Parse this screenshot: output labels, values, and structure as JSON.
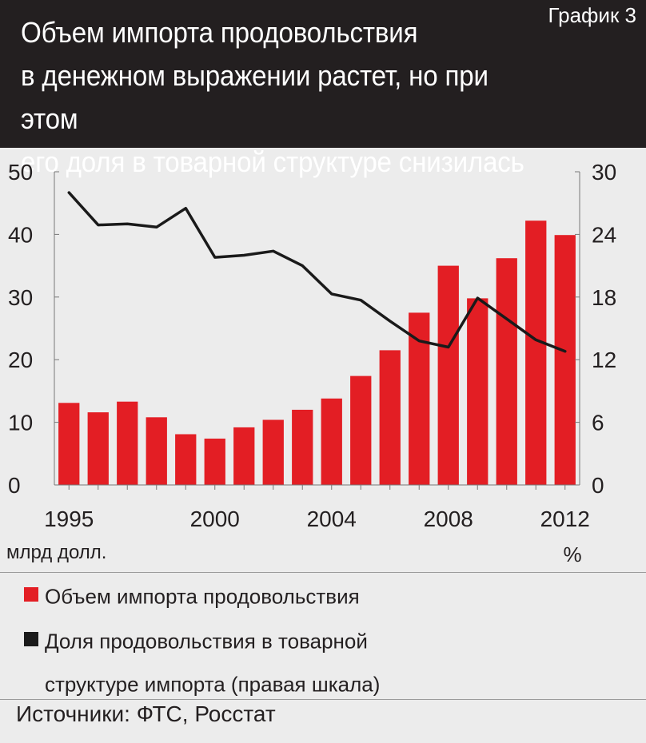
{
  "header": {
    "title_line1": "Объем импорта продовольствия",
    "title_line2": "в денежном выражении растет, но при этом",
    "title_line3": "его доля в товарной структуре снизилась",
    "tag": "График 3"
  },
  "colors": {
    "bar": "#e31e24",
    "line": "#1a1a1a",
    "header_bg": "#231f20",
    "background": "#ececec"
  },
  "chart_data": {
    "type": "bar",
    "years": [
      1995,
      1996,
      1997,
      1998,
      1999,
      2000,
      2001,
      2002,
      2003,
      2004,
      2005,
      2006,
      2007,
      2008,
      2009,
      2010,
      2011,
      2012
    ],
    "x_tick_labels": [
      "1995",
      "2000",
      "2004",
      "2008",
      "2012"
    ],
    "left_axis": {
      "ylim": [
        0,
        50
      ],
      "ticks": [
        "0",
        "10",
        "20",
        "30",
        "40",
        "50"
      ],
      "unit_label": "млрд долл."
    },
    "right_axis": {
      "ylim": [
        0,
        30
      ],
      "ticks": [
        "0",
        "6",
        "12",
        "18",
        "24",
        "30"
      ],
      "unit_label": "%"
    },
    "grid": false,
    "series": [
      {
        "name": "Объем импорта продовольствия",
        "type": "bar",
        "axis": "left",
        "values": [
          13.1,
          11.6,
          13.3,
          10.8,
          8.1,
          7.4,
          9.2,
          10.4,
          12.0,
          13.8,
          17.4,
          21.5,
          27.5,
          35.0,
          29.8,
          36.2,
          42.2,
          39.9
        ]
      },
      {
        "name": "Доля продовольствия в товарной структуре импорта (правая шкала)",
        "type": "line",
        "axis": "right",
        "values": [
          28.0,
          24.9,
          25.0,
          24.7,
          26.5,
          21.8,
          22.0,
          22.4,
          21.0,
          18.3,
          17.7,
          15.7,
          13.8,
          13.2,
          17.9,
          15.9,
          13.9,
          12.8
        ]
      }
    ]
  },
  "legend": {
    "bar_label": "Объем импорта продовольствия",
    "line_label_1": "Доля продовольствия в товарной",
    "line_label_2": "структуре импорта (правая шкала)"
  },
  "source": "Источники: ФТС, Росстат"
}
